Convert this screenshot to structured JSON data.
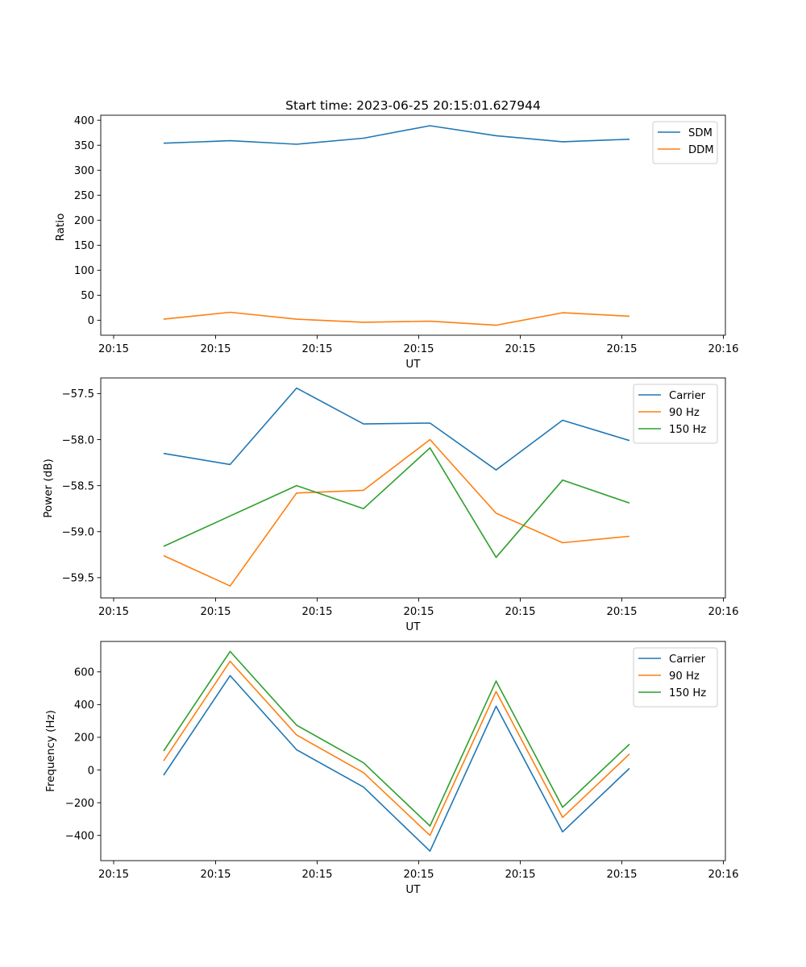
{
  "figure": {
    "title": "Start time: 2023-06-25 20:15:01.627944",
    "colors": {
      "blue": "#1f77b4",
      "orange": "#ff7f0e",
      "green": "#2ca02c"
    }
  },
  "chart_data": [
    {
      "type": "line",
      "xlabel": "UT",
      "ylabel": "Ratio",
      "x_tick_labels": [
        "20:15",
        "20:15",
        "20:15",
        "20:15",
        "20:15",
        "20:15",
        "20:16"
      ],
      "y_ticks": [
        0,
        50,
        100,
        150,
        200,
        250,
        300,
        350,
        400
      ],
      "ylim": [
        -30,
        410
      ],
      "x_points": [
        1,
        2,
        3,
        4,
        5,
        6,
        7,
        8
      ],
      "legend": "top-right",
      "grid": false,
      "series": [
        {
          "name": "SDM",
          "color": "#1f77b4",
          "values": [
            354,
            359,
            352,
            364,
            389,
            369,
            357,
            362
          ]
        },
        {
          "name": "DDM",
          "color": "#ff7f0e",
          "values": [
            2,
            16,
            2,
            -4,
            -2,
            -10,
            15,
            8
          ]
        }
      ]
    },
    {
      "type": "line",
      "xlabel": "UT",
      "ylabel": "Power (dB)",
      "x_tick_labels": [
        "20:15",
        "20:15",
        "20:15",
        "20:15",
        "20:15",
        "20:15",
        "20:16"
      ],
      "y_ticks": [
        -59.5,
        -59.0,
        -58.5,
        -58.0,
        -57.5
      ],
      "y_tick_labels": [
        "−59.5",
        "−59.0",
        "−58.5",
        "−58.0",
        "−57.5"
      ],
      "ylim": [
        -59.72,
        -57.33
      ],
      "x_points": [
        1,
        2,
        3,
        4,
        5,
        6,
        7,
        8
      ],
      "legend": "top-right",
      "grid": false,
      "series": [
        {
          "name": "Carrier",
          "color": "#1f77b4",
          "values": [
            -58.15,
            -58.27,
            -57.44,
            -57.83,
            -57.82,
            -58.33,
            -57.79,
            -58.01
          ]
        },
        {
          "name": "90 Hz",
          "color": "#ff7f0e",
          "values": [
            -59.26,
            -59.59,
            -58.58,
            -58.55,
            -58.0,
            -58.8,
            -59.12,
            -59.05
          ]
        },
        {
          "name": "150 Hz",
          "color": "#2ca02c",
          "values": [
            -59.16,
            -58.83,
            -58.5,
            -58.75,
            -58.09,
            -59.28,
            -58.44,
            -58.69
          ]
        }
      ]
    },
    {
      "type": "line",
      "xlabel": "UT",
      "ylabel": "Frequency (Hz)",
      "x_tick_labels": [
        "20:15",
        "20:15",
        "20:15",
        "20:15",
        "20:15",
        "20:15",
        "20:16"
      ],
      "y_ticks": [
        -400,
        -200,
        0,
        200,
        400,
        600
      ],
      "y_tick_labels": [
        "−400",
        "−200",
        "0",
        "200",
        "400",
        "600"
      ],
      "ylim": [
        -554,
        786
      ],
      "x_points": [
        1,
        2,
        3,
        4,
        5,
        6,
        7,
        8
      ],
      "legend": "top-right",
      "grid": false,
      "series": [
        {
          "name": "Carrier",
          "color": "#1f77b4",
          "values": [
            -32,
            577,
            124,
            -104,
            -496,
            390,
            -378,
            10
          ]
        },
        {
          "name": "90 Hz",
          "color": "#ff7f0e",
          "values": [
            56,
            665,
            214,
            -16,
            -400,
            480,
            -290,
            98
          ]
        },
        {
          "name": "150 Hz",
          "color": "#2ca02c",
          "values": [
            116,
            725,
            274,
            44,
            -342,
            544,
            -228,
            158
          ]
        }
      ]
    }
  ]
}
